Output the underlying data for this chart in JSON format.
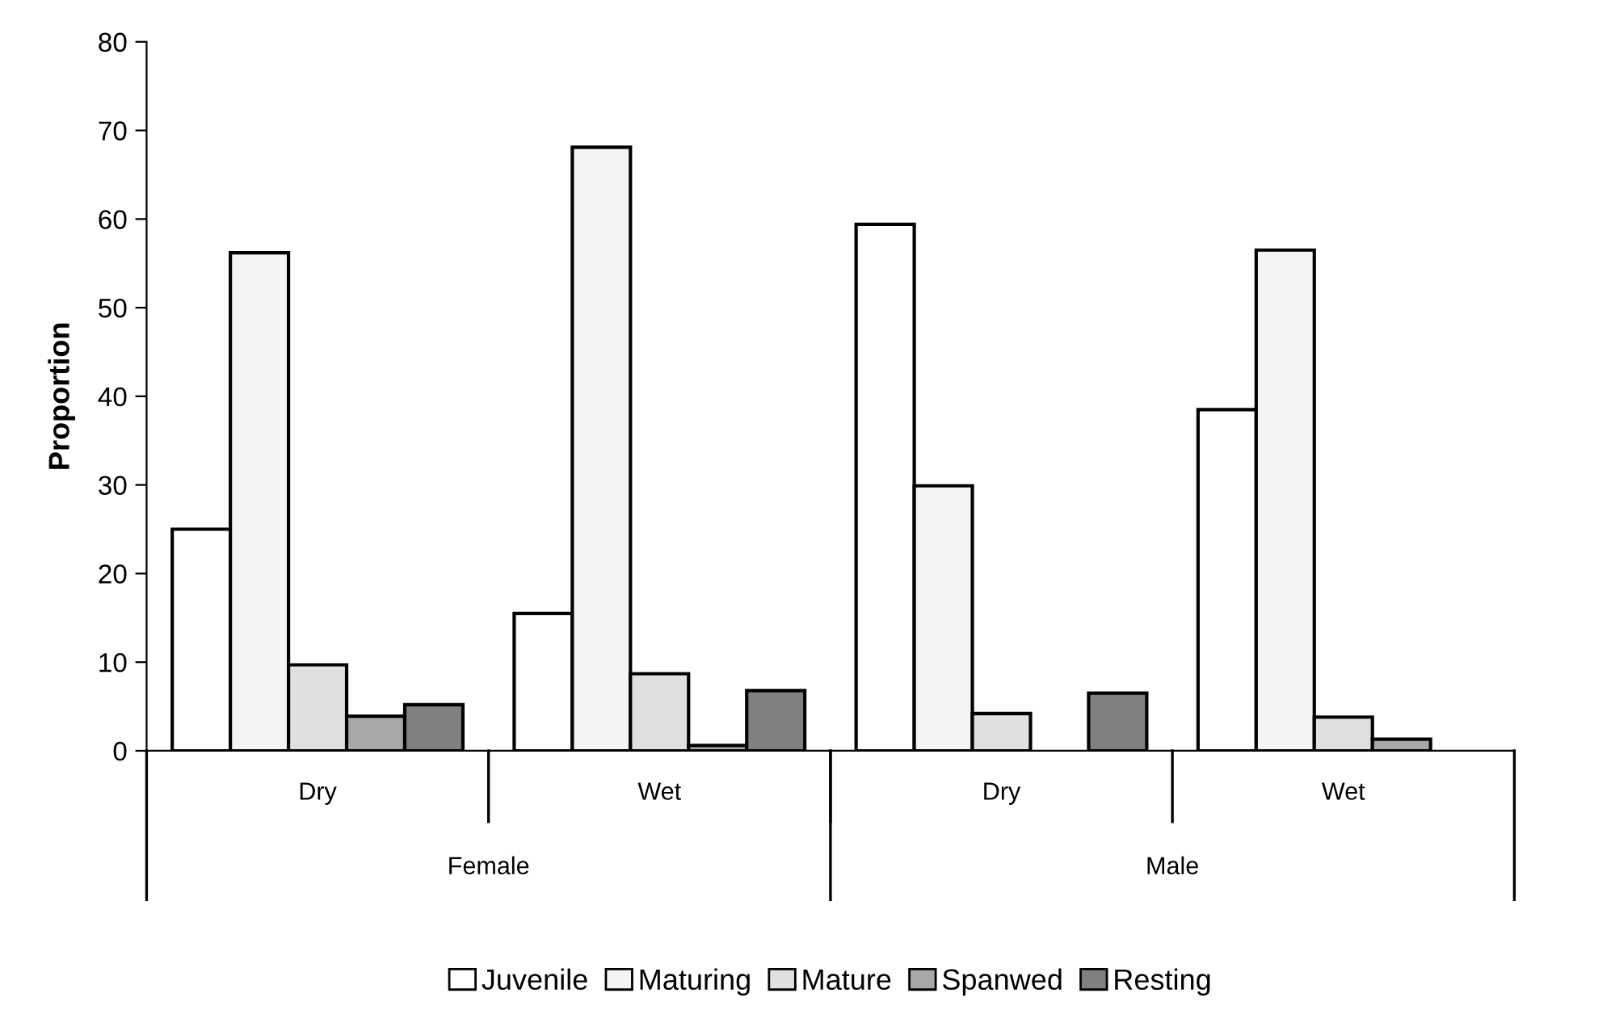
{
  "chart_data": {
    "type": "bar",
    "ylabel": "Proportion",
    "categories": [
      "Dry",
      "Wet",
      "Dry",
      "Wet"
    ],
    "annotations": [
      "Female",
      "Male"
    ],
    "series": [
      {
        "name": "Juvenile",
        "color": "#ffffff",
        "values": [
          25.0,
          15.5,
          59.4,
          38.5
        ]
      },
      {
        "name": "Maturing",
        "color": "#f4f4f4",
        "values": [
          56.2,
          68.1,
          29.9,
          56.5
        ]
      },
      {
        "name": "Mature",
        "color": "#e0e0e0",
        "values": [
          9.7,
          8.7,
          4.2,
          3.8
        ]
      },
      {
        "name": "Spanwed",
        "color": "#a8a8a8",
        "values": [
          3.9,
          0.6,
          null,
          1.3
        ]
      },
      {
        "name": "Resting",
        "color": "#808080",
        "values": [
          5.2,
          6.8,
          6.5,
          null
        ]
      }
    ],
    "ylim": [
      0,
      80
    ],
    "yticks": [
      0,
      10,
      20,
      30,
      40,
      50,
      60,
      70,
      80
    ],
    "grid": false,
    "legend": "bottom"
  }
}
